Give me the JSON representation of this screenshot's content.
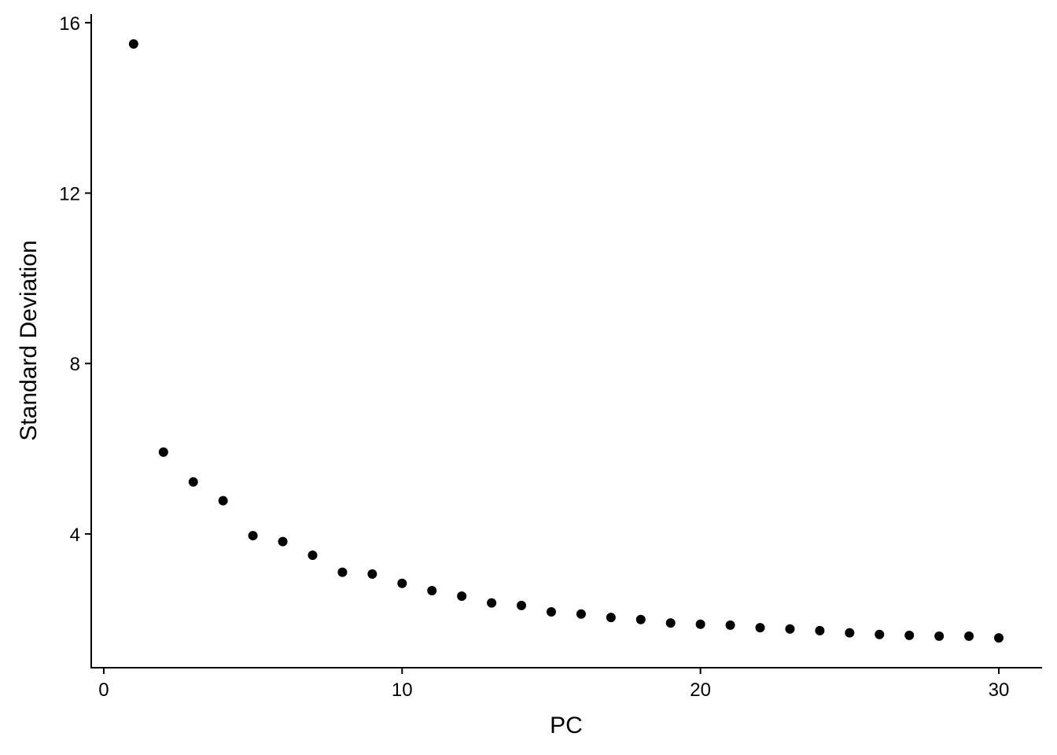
{
  "chart_data": {
    "type": "scatter",
    "title": "",
    "xlabel": "PC",
    "ylabel": "Standard Deviation",
    "xlim": [
      -0.42,
      31.45
    ],
    "ylim": [
      0.86,
      16.2
    ],
    "xticks": [
      0,
      10,
      20,
      30
    ],
    "yticks": [
      4,
      8,
      12,
      16
    ],
    "grid": false,
    "point_color": "#000000",
    "x": [
      1,
      2,
      3,
      4,
      5,
      6,
      7,
      8,
      9,
      10,
      11,
      12,
      13,
      14,
      15,
      16,
      17,
      18,
      19,
      20,
      21,
      22,
      23,
      24,
      25,
      26,
      27,
      28,
      29,
      30
    ],
    "y": [
      15.5,
      5.92,
      5.22,
      4.78,
      3.96,
      3.82,
      3.5,
      3.1,
      3.06,
      2.84,
      2.67,
      2.54,
      2.38,
      2.32,
      2.17,
      2.12,
      2.04,
      1.99,
      1.91,
      1.88,
      1.86,
      1.8,
      1.77,
      1.73,
      1.68,
      1.64,
      1.62,
      1.6,
      1.6,
      1.56
    ]
  }
}
